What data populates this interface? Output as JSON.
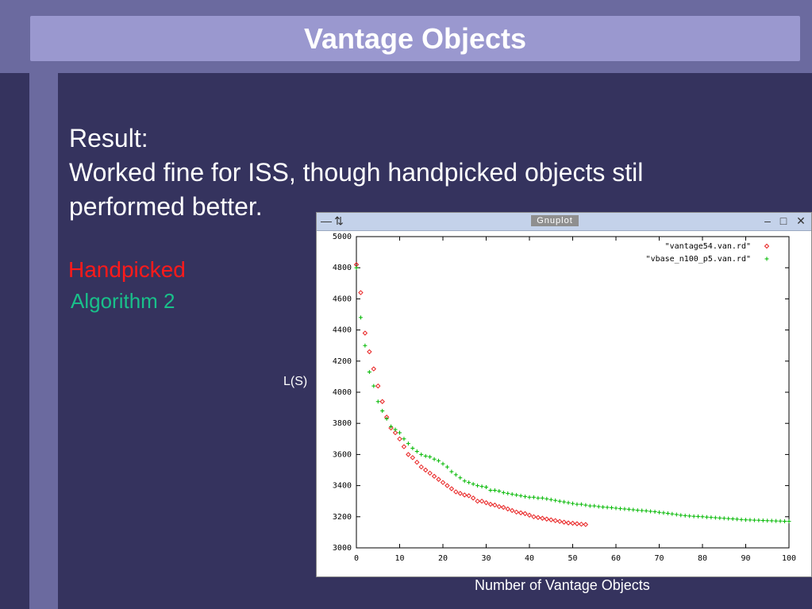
{
  "slide": {
    "title": "Vantage Objects",
    "lines": [
      "Result:",
      "Worked fine for ISS, though handpicked objects stil",
      "performed better."
    ],
    "legend_handpicked": "Handpicked",
    "legend_algorithm": "Algorithm 2",
    "ylabel": "L(S)",
    "xlabel": "Number of Vantage Objects"
  },
  "window": {
    "title": "Gnuplot",
    "controls": [
      "minimize-icon",
      "restore-icon",
      "close-icon"
    ]
  },
  "colors": {
    "background": "#35335e",
    "band": "#6b6a9f",
    "title_bar": "#9a98cf",
    "handpicked": "#ff1a1a",
    "algorithm": "#19c08a",
    "series1": "#e82020",
    "series2": "#00b800"
  },
  "chart_data": {
    "type": "scatter",
    "title": "",
    "xlabel": "Number of Vantage Objects",
    "ylabel": "L(S)",
    "xlim": [
      0,
      100
    ],
    "ylim": [
      3000,
      5000
    ],
    "xticks": [
      0,
      10,
      20,
      30,
      40,
      50,
      60,
      70,
      80,
      90,
      100
    ],
    "yticks": [
      3000,
      3200,
      3400,
      3600,
      3800,
      4000,
      4200,
      4400,
      4600,
      4800,
      5000
    ],
    "grid": false,
    "legend_position": "top-right",
    "series": [
      {
        "name": "\"vantage54.van.rd\"",
        "marker": "diamond",
        "color": "#e82020",
        "points": [
          [
            0,
            4820
          ],
          [
            1,
            4640
          ],
          [
            2,
            4380
          ],
          [
            3,
            4260
          ],
          [
            4,
            4150
          ],
          [
            5,
            4040
          ],
          [
            6,
            3940
          ],
          [
            7,
            3840
          ],
          [
            8,
            3770
          ],
          [
            9,
            3740
          ],
          [
            10,
            3700
          ],
          [
            11,
            3650
          ],
          [
            12,
            3600
          ],
          [
            13,
            3580
          ],
          [
            14,
            3550
          ],
          [
            15,
            3520
          ],
          [
            16,
            3500
          ],
          [
            17,
            3480
          ],
          [
            18,
            3460
          ],
          [
            19,
            3440
          ],
          [
            20,
            3420
          ],
          [
            21,
            3400
          ],
          [
            22,
            3380
          ],
          [
            23,
            3360
          ],
          [
            24,
            3350
          ],
          [
            25,
            3340
          ],
          [
            26,
            3335
          ],
          [
            27,
            3320
          ],
          [
            28,
            3300
          ],
          [
            29,
            3300
          ],
          [
            30,
            3290
          ],
          [
            31,
            3280
          ],
          [
            32,
            3275
          ],
          [
            33,
            3265
          ],
          [
            34,
            3260
          ],
          [
            35,
            3250
          ],
          [
            36,
            3240
          ],
          [
            37,
            3230
          ],
          [
            38,
            3225
          ],
          [
            39,
            3220
          ],
          [
            40,
            3210
          ],
          [
            41,
            3200
          ],
          [
            42,
            3195
          ],
          [
            43,
            3190
          ],
          [
            44,
            3185
          ],
          [
            45,
            3180
          ],
          [
            46,
            3175
          ],
          [
            47,
            3170
          ],
          [
            48,
            3165
          ],
          [
            49,
            3160
          ],
          [
            50,
            3158
          ],
          [
            51,
            3155
          ],
          [
            52,
            3152
          ],
          [
            53,
            3150
          ]
        ]
      },
      {
        "name": "\"vbase_n100_p5.van.rd\"",
        "marker": "plus",
        "color": "#00b800",
        "points": [
          [
            0,
            4800
          ],
          [
            1,
            4480
          ],
          [
            2,
            4300
          ],
          [
            3,
            4130
          ],
          [
            4,
            4040
          ],
          [
            5,
            3940
          ],
          [
            6,
            3880
          ],
          [
            7,
            3830
          ],
          [
            8,
            3780
          ],
          [
            9,
            3760
          ],
          [
            10,
            3740
          ],
          [
            11,
            3700
          ],
          [
            12,
            3670
          ],
          [
            13,
            3640
          ],
          [
            14,
            3620
          ],
          [
            15,
            3600
          ],
          [
            16,
            3590
          ],
          [
            17,
            3585
          ],
          [
            18,
            3570
          ],
          [
            19,
            3560
          ],
          [
            20,
            3540
          ],
          [
            21,
            3520
          ],
          [
            22,
            3490
          ],
          [
            23,
            3470
          ],
          [
            24,
            3450
          ],
          [
            25,
            3430
          ],
          [
            26,
            3420
          ],
          [
            27,
            3410
          ],
          [
            28,
            3400
          ],
          [
            29,
            3395
          ],
          [
            30,
            3390
          ],
          [
            31,
            3370
          ],
          [
            32,
            3370
          ],
          [
            33,
            3365
          ],
          [
            34,
            3355
          ],
          [
            35,
            3350
          ],
          [
            36,
            3345
          ],
          [
            37,
            3340
          ],
          [
            38,
            3335
          ],
          [
            39,
            3330
          ],
          [
            40,
            3325
          ],
          [
            41,
            3325
          ],
          [
            42,
            3320
          ],
          [
            43,
            3320
          ],
          [
            44,
            3315
          ],
          [
            45,
            3310
          ],
          [
            46,
            3305
          ],
          [
            47,
            3300
          ],
          [
            48,
            3295
          ],
          [
            49,
            3290
          ],
          [
            50,
            3285
          ],
          [
            51,
            3280
          ],
          [
            52,
            3280
          ],
          [
            53,
            3275
          ],
          [
            54,
            3270
          ],
          [
            55,
            3270
          ],
          [
            56,
            3265
          ],
          [
            57,
            3262
          ],
          [
            58,
            3260
          ],
          [
            59,
            3258
          ],
          [
            60,
            3255
          ],
          [
            61,
            3252
          ],
          [
            62,
            3250
          ],
          [
            63,
            3248
          ],
          [
            64,
            3245
          ],
          [
            65,
            3242
          ],
          [
            66,
            3240
          ],
          [
            67,
            3238
          ],
          [
            68,
            3235
          ],
          [
            69,
            3232
          ],
          [
            70,
            3228
          ],
          [
            71,
            3225
          ],
          [
            72,
            3222
          ],
          [
            73,
            3218
          ],
          [
            74,
            3214
          ],
          [
            75,
            3210
          ],
          [
            76,
            3207
          ],
          [
            77,
            3205
          ],
          [
            78,
            3203
          ],
          [
            79,
            3202
          ],
          [
            80,
            3200
          ],
          [
            81,
            3198
          ],
          [
            82,
            3196
          ],
          [
            83,
            3194
          ],
          [
            84,
            3192
          ],
          [
            85,
            3190
          ],
          [
            86,
            3188
          ],
          [
            87,
            3186
          ],
          [
            88,
            3184
          ],
          [
            89,
            3182
          ],
          [
            90,
            3180
          ],
          [
            91,
            3179
          ],
          [
            92,
            3178
          ],
          [
            93,
            3177
          ],
          [
            94,
            3176
          ],
          [
            95,
            3175
          ],
          [
            96,
            3174
          ],
          [
            97,
            3173
          ],
          [
            98,
            3172
          ],
          [
            99,
            3171
          ],
          [
            100,
            3170
          ]
        ]
      }
    ]
  }
}
